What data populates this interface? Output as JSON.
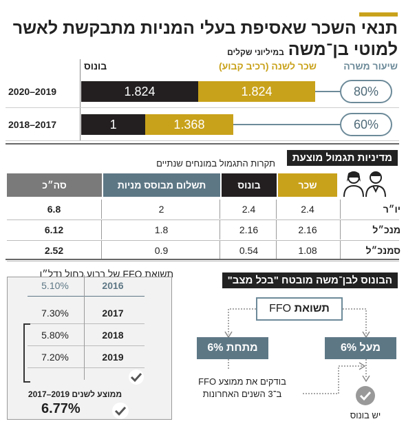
{
  "title": "תנאי השכר שאסיפת בעלי המניות מתבקשת לאשר",
  "subtitle": "למוטי בן־משה",
  "subtitle_note": "במיליוני שקלים",
  "colors": {
    "accent": "#c9a21b",
    "dark": "#231f20",
    "slate": "#5d7785",
    "pill": "#6c8a99"
  },
  "chart_data": [
    {
      "type": "bar",
      "stacked": true,
      "orientation": "horizontal",
      "headers": {
        "rate": "שיעור משרה",
        "salary": "שכר לשנה (רכיב קבוע)",
        "bonus": "בונוס"
      },
      "categories": [
        "2020–2019",
        "2018–2017"
      ],
      "rates": [
        "80%",
        "60%"
      ],
      "series": [
        {
          "name": "שכר לשנה (רכיב קבוע)",
          "values": [
            1.824,
            1.368
          ],
          "labels": [
            "1.824",
            "1.368"
          ]
        },
        {
          "name": "בונוס",
          "values": [
            1.824,
            1
          ],
          "labels": [
            "1.824",
            "1"
          ]
        }
      ],
      "xlim": [
        0,
        3.648
      ]
    },
    {
      "type": "table",
      "section_title": "מדיניות תגמול מוצעת",
      "caption": "תקרות התגמול במונחים שנתיים",
      "columns": [
        "שכר",
        "בונוס",
        "תשלום מבוסס מניות",
        "סה״כ"
      ],
      "rows": [
        {
          "label": "יו״ר",
          "values": [
            "2.4",
            "2.4",
            "2",
            "6.8"
          ]
        },
        {
          "label": "מנכ״ל",
          "values": [
            "2.16",
            "2.16",
            "1.8",
            "6.12"
          ]
        },
        {
          "label": "סמנכ״ל",
          "values": [
            "1.08",
            "0.54",
            "0.9",
            "2.52"
          ]
        }
      ]
    },
    {
      "type": "table",
      "title": "תשואת FFO של רבוע כחול נדל״ן",
      "rows": [
        {
          "year": "2016",
          "value": "5.10%"
        },
        {
          "year": "2017",
          "value": "7.30%"
        },
        {
          "year": "2018",
          "value": "5.80%"
        },
        {
          "year": "2019",
          "value": "7.20%"
        }
      ],
      "average_label": "ממוצע לשנים 2019–2017",
      "average_value": "6.77%"
    }
  ],
  "scheme": {
    "title": "הבונוס לבן־משה מובטח \"בכל מצב\"",
    "top_bold": "תשואת",
    "top_plain": "FFO",
    "above": "מעל 6%",
    "below": "מתחת 6%",
    "below_note_1": "בודקים את ממוצע FFO",
    "below_note_2": "ב־3 השנים האחרונות",
    "result": "יש בונוס"
  }
}
